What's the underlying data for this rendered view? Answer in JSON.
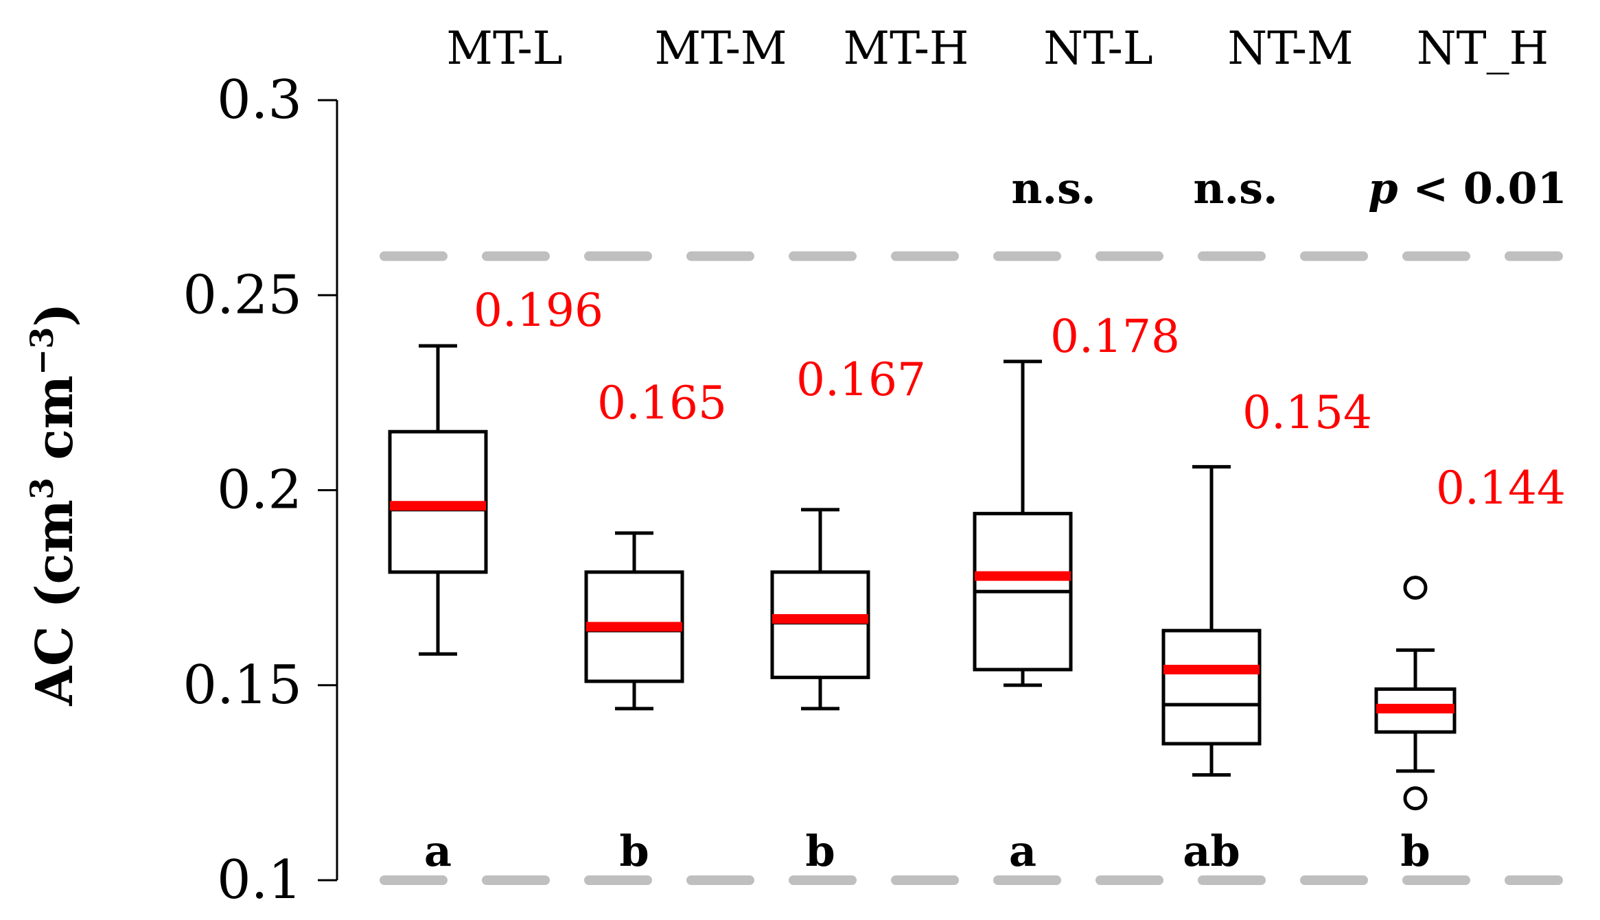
{
  "chart_data": {
    "type": "box",
    "ylabel": {
      "prefix": "AC (cm",
      "sup1": "3",
      "mid": " cm",
      "sup2": "−3",
      "suffix": ")"
    },
    "ylim": [
      0.1,
      0.3
    ],
    "yticks": [
      0.1,
      0.15,
      0.2,
      0.25,
      0.3
    ],
    "ytick_labels": [
      "0.1",
      "0.15",
      "0.2",
      "0.25",
      "0.3"
    ],
    "reference_lines": [
      0.26,
      0.1
    ],
    "categories": [
      "MT-L",
      "MT-M",
      "MT-H",
      "NT-L",
      "NT-M",
      "NT_H"
    ],
    "boxes": [
      {
        "name": "MT-L",
        "whisker_low": 0.158,
        "q1": 0.179,
        "median": 0.195,
        "q3": 0.215,
        "whisker_high": 0.237,
        "mean": 0.196,
        "mean_label": "0.196",
        "outliers": [],
        "letter": "a"
      },
      {
        "name": "MT-M",
        "whisker_low": 0.144,
        "q1": 0.151,
        "median": 0.164,
        "q3": 0.179,
        "whisker_high": 0.189,
        "mean": 0.165,
        "mean_label": "0.165",
        "outliers": [],
        "letter": "b"
      },
      {
        "name": "MT-H",
        "whisker_low": 0.144,
        "q1": 0.152,
        "median": 0.166,
        "q3": 0.179,
        "whisker_high": 0.195,
        "mean": 0.167,
        "mean_label": "0.167",
        "outliers": [],
        "letter": "b"
      },
      {
        "name": "NT-L",
        "whisker_low": 0.15,
        "q1": 0.154,
        "median": 0.174,
        "q3": 0.194,
        "whisker_high": 0.233,
        "mean": 0.178,
        "mean_label": "0.178",
        "outliers": [],
        "letter": "a"
      },
      {
        "name": "NT-M",
        "whisker_low": 0.127,
        "q1": 0.135,
        "median": 0.145,
        "q3": 0.164,
        "whisker_high": 0.206,
        "mean": 0.154,
        "mean_label": "0.154",
        "outliers": [],
        "letter": "ab"
      },
      {
        "name": "NT_H",
        "whisker_low": 0.128,
        "q1": 0.138,
        "median": 0.144,
        "q3": 0.149,
        "whisker_high": 0.159,
        "mean": 0.144,
        "mean_label": "0.144",
        "outliers": [
          0.175,
          0.121
        ],
        "letter": "b"
      }
    ],
    "significance": [
      {
        "text": "n.s."
      },
      {
        "text": "n.s."
      },
      {
        "p_italic": "p",
        "rest": " < 0.01"
      }
    ],
    "colors": {
      "box": "#000000",
      "mean": "#ff0000",
      "reference": "#bfbfbf",
      "axis": "#000000"
    }
  }
}
